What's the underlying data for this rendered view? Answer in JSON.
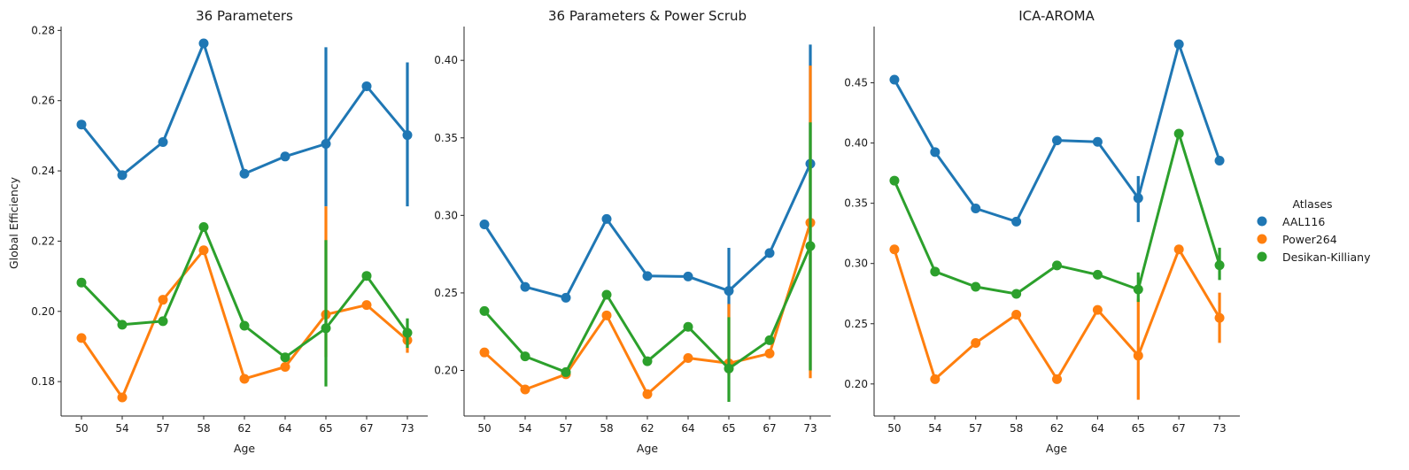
{
  "figure": {
    "ylabel": "Global Efficiency",
    "legend": {
      "title": "Atlases",
      "placement": "right",
      "entries": [
        {
          "name": "AAL116",
          "color": "#1f77b4"
        },
        {
          "name": "Power264",
          "color": "#ff7f0e"
        },
        {
          "name": "Desikan-Killiany",
          "color": "#2ca02c"
        }
      ]
    }
  },
  "chart_data": [
    {
      "type": "line",
      "title": "36 Parameters",
      "xlabel": "Age",
      "ylabel": "Global Efficiency",
      "categories": [
        "50",
        "54",
        "57",
        "58",
        "62",
        "64",
        "65",
        "67",
        "73"
      ],
      "ylim": [
        0.1702,
        0.2811
      ],
      "yticks": [
        0.18,
        0.2,
        0.22,
        0.24,
        0.26,
        0.28
      ],
      "ytick_labels": [
        "0.18",
        "0.20",
        "0.22",
        "0.24",
        "0.26",
        "0.28"
      ],
      "grid": false,
      "series": [
        {
          "name": "AAL116",
          "color": "#1f77b4",
          "values": [
            0.2532,
            0.2388,
            0.2482,
            0.2763,
            0.2392,
            0.2441,
            0.2477,
            0.2641,
            0.2502
          ],
          "error": [
            null,
            null,
            null,
            null,
            null,
            null,
            [
              0.2299,
              0.2752
            ],
            null,
            [
              0.2299,
              0.2709
            ]
          ]
        },
        {
          "name": "Power264",
          "color": "#ff7f0e",
          "values": [
            0.1924,
            0.1755,
            0.2033,
            0.2174,
            0.1808,
            0.1842,
            0.1991,
            0.2018,
            0.1918
          ],
          "error": [
            null,
            null,
            null,
            null,
            null,
            null,
            [
              0.187,
              0.2299
            ],
            null,
            [
              0.1882,
              0.1955
            ]
          ]
        },
        {
          "name": "Desikan-Killiany",
          "color": "#2ca02c",
          "values": [
            0.2082,
            0.1962,
            0.1972,
            0.224,
            0.1959,
            0.1869,
            0.1952,
            0.2101,
            0.1939
          ],
          "error": [
            null,
            null,
            null,
            null,
            null,
            null,
            [
              0.1786,
              0.2203
            ],
            null,
            [
              0.1896,
              0.198
            ]
          ]
        }
      ]
    },
    {
      "type": "line",
      "title": "36 Parameters & Power Scrub",
      "xlabel": "Age",
      "ylabel": "",
      "categories": [
        "50",
        "54",
        "57",
        "58",
        "62",
        "64",
        "65",
        "67",
        "73"
      ],
      "ylim": [
        0.1706,
        0.4218
      ],
      "yticks": [
        0.2,
        0.25,
        0.3,
        0.35,
        0.4
      ],
      "ytick_labels": [
        "0.20",
        "0.25",
        "0.30",
        "0.35",
        "0.40"
      ],
      "grid": false,
      "series": [
        {
          "name": "AAL116",
          "color": "#1f77b4",
          "values": [
            0.2942,
            0.2539,
            0.2469,
            0.2977,
            0.2609,
            0.2606,
            0.2513,
            0.2757,
            0.3333
          ],
          "error": [
            null,
            null,
            null,
            null,
            null,
            null,
            [
              0.2344,
              0.2791
            ],
            null,
            [
              0.2,
              0.4102
            ]
          ]
        },
        {
          "name": "Power264",
          "color": "#ff7f0e",
          "values": [
            0.2116,
            0.1877,
            0.1975,
            0.2355,
            0.1847,
            0.208,
            0.2046,
            0.2109,
            0.2953
          ],
          "error": [
            null,
            null,
            null,
            null,
            null,
            null,
            [
              0.1969,
              0.2428
            ],
            null,
            [
              0.195,
              0.3966
            ]
          ]
        },
        {
          "name": "Desikan-Killiany",
          "color": "#2ca02c",
          "values": [
            0.2383,
            0.2091,
            0.1989,
            0.2488,
            0.2059,
            0.2281,
            0.2012,
            0.2195,
            0.2802
          ],
          "error": [
            null,
            null,
            null,
            null,
            null,
            null,
            [
              0.1797,
              0.2343
            ],
            null,
            [
              0.2,
              0.36
            ]
          ]
        }
      ]
    },
    {
      "type": "line",
      "title": "ICA-AROMA",
      "xlabel": "Age",
      "ylabel": "",
      "categories": [
        "50",
        "54",
        "57",
        "58",
        "62",
        "64",
        "65",
        "67",
        "73"
      ],
      "ylim": [
        0.1734,
        0.4967
      ],
      "yticks": [
        0.2,
        0.25,
        0.3,
        0.35,
        0.4,
        0.45
      ],
      "ytick_labels": [
        "0.20",
        "0.25",
        "0.30",
        "0.35",
        "0.40",
        "0.45"
      ],
      "grid": false,
      "series": [
        {
          "name": "AAL116",
          "color": "#1f77b4",
          "values": [
            0.4526,
            0.3925,
            0.3457,
            0.3348,
            0.4022,
            0.401,
            0.3543,
            0.482,
            0.3854
          ],
          "error": [
            null,
            null,
            null,
            null,
            null,
            null,
            [
              0.3344,
              0.3726
            ],
            null,
            null
          ]
        },
        {
          "name": "Power264",
          "color": "#ff7f0e",
          "values": [
            0.3117,
            0.204,
            0.234,
            0.2575,
            0.204,
            0.2615,
            0.2235,
            0.3117,
            0.2549
          ],
          "error": [
            null,
            null,
            null,
            null,
            null,
            null,
            [
              0.1869,
              0.2707
            ],
            null,
            [
              0.2341,
              0.2758
            ]
          ]
        },
        {
          "name": "Desikan-Killiany",
          "color": "#2ca02c",
          "values": [
            0.3688,
            0.2933,
            0.2807,
            0.2748,
            0.2984,
            0.2907,
            0.2785,
            0.4078,
            0.2986
          ],
          "error": [
            null,
            null,
            null,
            null,
            null,
            null,
            [
              0.2681,
              0.2926
            ],
            null,
            [
              0.2863,
              0.3131
            ]
          ]
        }
      ]
    }
  ]
}
